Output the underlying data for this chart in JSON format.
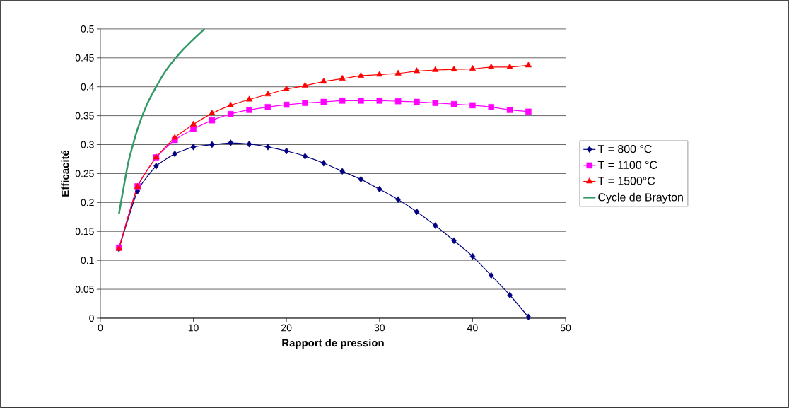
{
  "chart_data": {
    "type": "line",
    "xlabel": "Rapport de pression",
    "ylabel": "Efficacité",
    "xlim": [
      0,
      50
    ],
    "ylim": [
      0,
      0.5
    ],
    "xticks": [
      0,
      10,
      20,
      30,
      40,
      50
    ],
    "yticks": [
      0,
      0.05,
      0.1,
      0.15,
      0.2,
      0.25,
      0.3,
      0.35,
      0.4,
      0.45,
      0.5
    ],
    "grid": "y",
    "legend": "right",
    "x": [
      2,
      4,
      6,
      8,
      10,
      12,
      14,
      16,
      18,
      20,
      22,
      24,
      26,
      28,
      30,
      32,
      34,
      36,
      38,
      40,
      42,
      44,
      46
    ],
    "series": [
      {
        "name": "T = 800 °C",
        "color": "#000080",
        "marker": "diamond",
        "values": [
          0.12,
          0.22,
          0.263,
          0.284,
          0.296,
          0.3,
          0.303,
          0.301,
          0.296,
          0.289,
          0.28,
          0.268,
          0.254,
          0.24,
          0.223,
          0.205,
          0.184,
          0.16,
          0.134,
          0.107,
          0.074,
          0.04,
          0.002
        ]
      },
      {
        "name": "T = 1100 °C",
        "color": "#ff00ff",
        "marker": "square",
        "values": [
          0.122,
          0.228,
          0.278,
          0.308,
          0.327,
          0.342,
          0.353,
          0.36,
          0.365,
          0.369,
          0.372,
          0.374,
          0.376,
          0.376,
          0.376,
          0.375,
          0.374,
          0.372,
          0.37,
          0.368,
          0.365,
          0.36,
          0.357
        ]
      },
      {
        "name": "T = 1500°C",
        "color": "#ff0000",
        "marker": "triangle",
        "values": [
          0.12,
          0.227,
          0.278,
          0.312,
          0.335,
          0.354,
          0.368,
          0.378,
          0.387,
          0.396,
          0.402,
          0.409,
          0.414,
          0.419,
          0.421,
          0.423,
          0.427,
          0.429,
          0.43,
          0.431,
          0.434,
          0.434,
          0.437
        ]
      },
      {
        "name": "Cycle de Brayton",
        "color": "#339966",
        "marker": "none",
        "x": [
          2,
          3,
          4,
          5,
          6,
          7,
          8,
          9,
          10,
          11.2
        ],
        "values": [
          0.18,
          0.269,
          0.327,
          0.369,
          0.4,
          0.427,
          0.448,
          0.466,
          0.482,
          0.5
        ]
      }
    ]
  }
}
